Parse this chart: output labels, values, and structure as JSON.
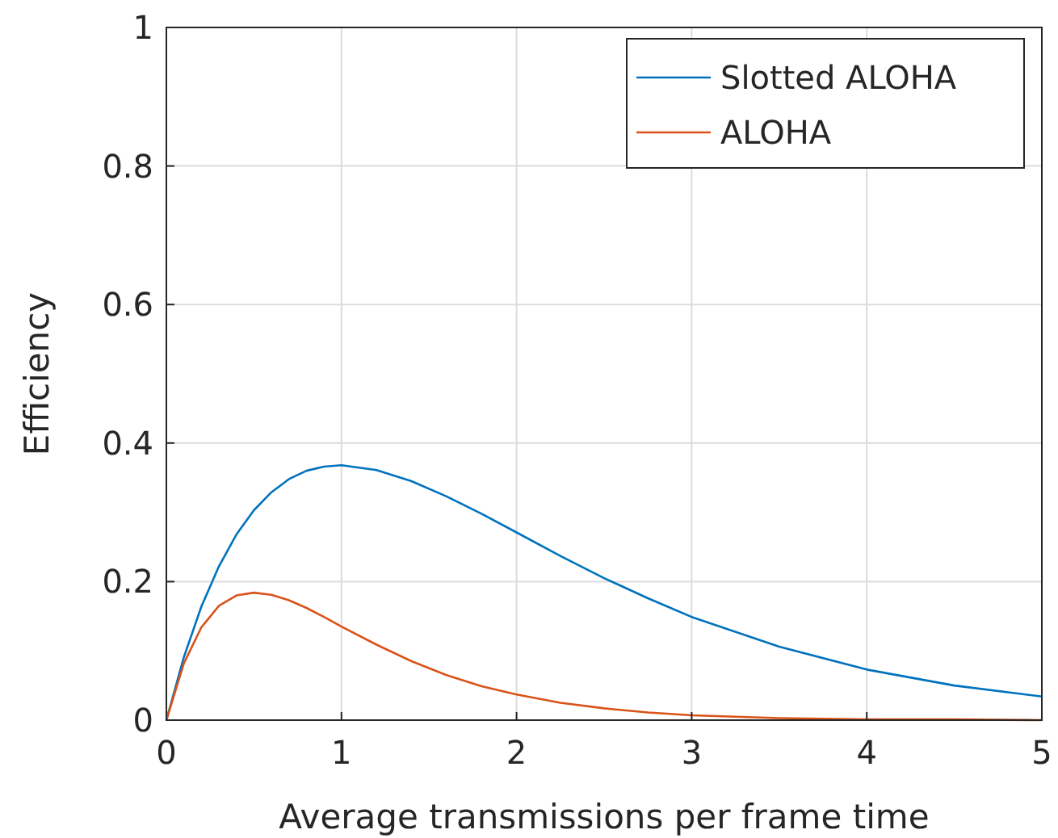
{
  "chart_data": {
    "type": "line",
    "xlabel": "Average transmissions per frame time",
    "ylabel": "Efficiency",
    "x": [
      0,
      0.1,
      0.2,
      0.3,
      0.4,
      0.5,
      0.6,
      0.7,
      0.8,
      0.9,
      1,
      1.2,
      1.4,
      1.6,
      1.8,
      2,
      2.25,
      2.5,
      2.75,
      3,
      3.5,
      4,
      4.5,
      5
    ],
    "series": [
      {
        "name": "Slotted ALOHA",
        "color": "#0072bd",
        "values": [
          0,
          0.091,
          0.164,
          0.222,
          0.268,
          0.303,
          0.329,
          0.348,
          0.36,
          0.366,
          0.368,
          0.361,
          0.345,
          0.323,
          0.298,
          0.271,
          0.237,
          0.205,
          0.176,
          0.149,
          0.106,
          0.073,
          0.05,
          0.034
        ]
      },
      {
        "name": "ALOHA",
        "color": "#d95319",
        "values": [
          0,
          0.082,
          0.134,
          0.165,
          0.18,
          0.184,
          0.181,
          0.173,
          0.162,
          0.149,
          0.135,
          0.109,
          0.085,
          0.065,
          0.049,
          0.037,
          0.025,
          0.017,
          0.011,
          0.007,
          0.003,
          0.001,
          0.001,
          0.0
        ]
      }
    ],
    "xlim": [
      0,
      5
    ],
    "xticks": [
      0,
      1,
      2,
      3,
      4,
      5
    ],
    "ylim": [
      0,
      1
    ],
    "yticks": [
      0,
      0.2,
      0.4,
      0.6,
      0.8,
      1
    ],
    "grid": true,
    "legend": "top right",
    "marker": "none",
    "line_style": "solid"
  }
}
